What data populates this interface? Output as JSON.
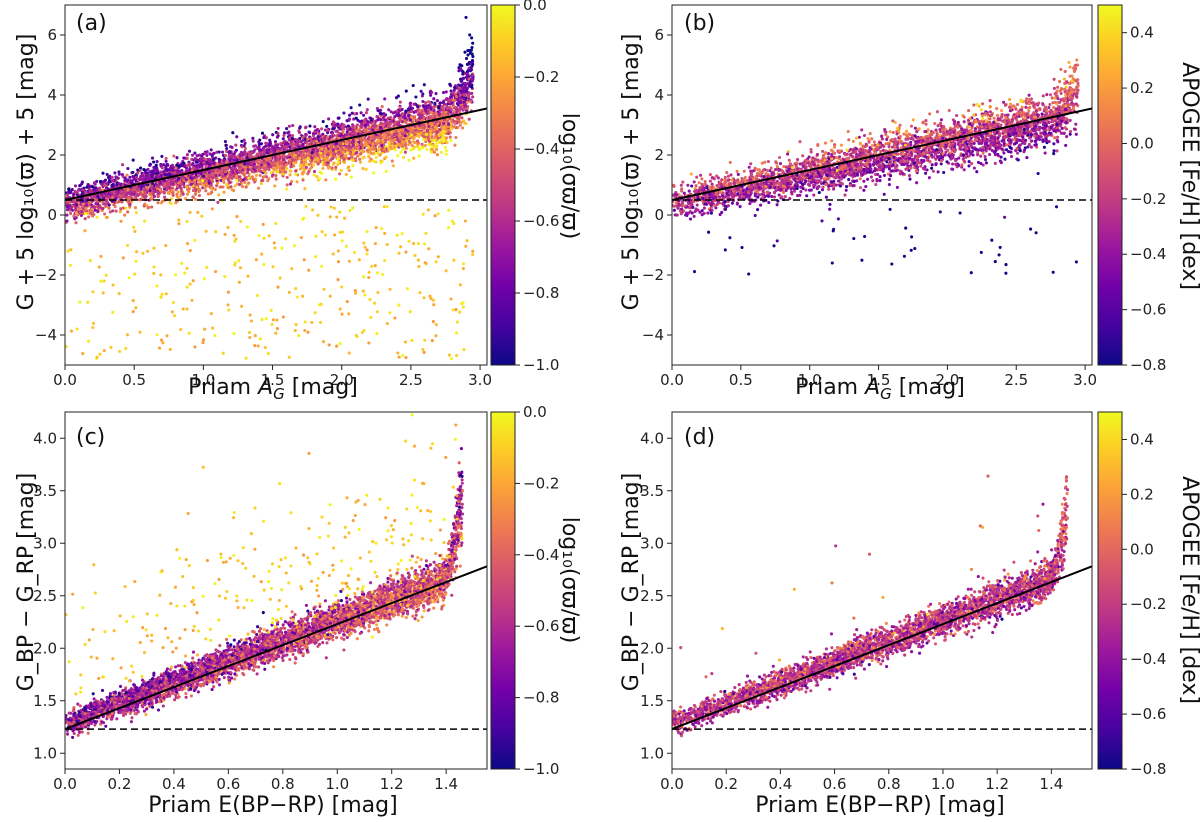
{
  "colormap": [
    "#0d0887",
    "#46039f",
    "#7201a8",
    "#9c179e",
    "#bd3786",
    "#d8576b",
    "#ed7953",
    "#fb9f3a",
    "#fdca26",
    "#f0f921"
  ],
  "chart_data": [
    {
      "id": "a",
      "type": "scatter",
      "panel_label": "(a)",
      "xlabel_main": "Priam ",
      "xlabel_var": "A",
      "xlabel_sub": "G",
      "xlabel_unit": " [mag]",
      "ylabel": "G + 5 log₁₀(ϖ) + 5 [mag]",
      "xlim": [
        0.0,
        3.05
      ],
      "ylim": [
        -5.0,
        7.0
      ],
      "xticks": [
        "0.0",
        "0.5",
        "1.0",
        "1.5",
        "2.0",
        "2.5",
        "3.0"
      ],
      "xtick_values": [
        0.0,
        0.5,
        1.0,
        1.5,
        2.0,
        2.5,
        3.0
      ],
      "yticks": [
        "−4",
        "−2",
        "0",
        "2",
        "4",
        "6"
      ],
      "ytick_values": [
        -4,
        -2,
        0,
        2,
        4,
        6
      ],
      "fit_line": {
        "x": [
          0.0,
          3.05
        ],
        "y": [
          0.5,
          3.55
        ]
      },
      "reference_line": {
        "y": 0.5
      },
      "colorbar": {
        "label": "log₁₀(σϖ/ϖ)",
        "vmin": -1.0,
        "vmax": 0.0,
        "ticks": [
          "0.0",
          "−0.2",
          "−0.4",
          "−0.6",
          "−0.8",
          "−1.0"
        ],
        "tick_values": [
          0.0,
          -0.2,
          -0.4,
          -0.6,
          -0.8,
          -1.0
        ]
      },
      "scatter": {
        "n": 5200,
        "x_max": 2.95,
        "slope": 1.0,
        "intercept": 0.5,
        "y_spread": 0.45,
        "y_offset": 0.3,
        "uptick_start": 2.7,
        "uptick_amp": 2.5,
        "outlier_fraction": 0.06,
        "outlier_y_min": -4.8,
        "outlier_y_max": 0.3,
        "color_mode": "parallax",
        "seed": 11
      }
    },
    {
      "id": "b",
      "type": "scatter",
      "panel_label": "(b)",
      "xlabel_main": "Priam ",
      "xlabel_var": "A",
      "xlabel_sub": "G",
      "xlabel_unit": " [mag]",
      "ylabel": "G + 5 log₁₀(ϖ) + 5 [mag]",
      "xlim": [
        0.0,
        3.05
      ],
      "ylim": [
        -5.0,
        7.0
      ],
      "xticks": [
        "0.0",
        "0.5",
        "1.0",
        "1.5",
        "2.0",
        "2.5",
        "3.0"
      ],
      "xtick_values": [
        0.0,
        0.5,
        1.0,
        1.5,
        2.0,
        2.5,
        3.0
      ],
      "yticks": [
        "−4",
        "−2",
        "0",
        "2",
        "4",
        "6"
      ],
      "ytick_values": [
        -4,
        -2,
        0,
        2,
        4,
        6
      ],
      "fit_line": {
        "x": [
          0.0,
          3.05
        ],
        "y": [
          0.5,
          3.55
        ]
      },
      "reference_line": {
        "y": 0.5
      },
      "colorbar": {
        "label": "APOGEE [Fe/H] [dex]",
        "vmin": -0.8,
        "vmax": 0.5,
        "ticks": [
          "0.4",
          "0.2",
          "0.0",
          "−0.2",
          "−0.4",
          "−0.6",
          "−0.8"
        ],
        "tick_values": [
          0.4,
          0.2,
          0.0,
          -0.2,
          -0.4,
          -0.6,
          -0.8
        ]
      },
      "scatter": {
        "n": 3600,
        "x_max": 2.95,
        "slope": 1.0,
        "intercept": 0.5,
        "y_spread": 0.45,
        "y_offset": 0.3,
        "uptick_start": 2.7,
        "uptick_amp": 1.6,
        "outlier_fraction": 0.01,
        "outlier_y_min": -2.0,
        "outlier_y_max": 0.3,
        "color_mode": "metallicity",
        "seed": 23
      }
    },
    {
      "id": "c",
      "type": "scatter",
      "panel_label": "(c)",
      "xlabel_main": "Priam E(BP−RP) [mag]",
      "xlabel_var": "",
      "xlabel_sub": "",
      "xlabel_unit": "",
      "ylabel": "G_BP − G_RP [mag]",
      "xlim": [
        0.0,
        1.55
      ],
      "ylim": [
        0.85,
        4.25
      ],
      "xticks": [
        "0.0",
        "0.2",
        "0.4",
        "0.6",
        "0.8",
        "1.0",
        "1.2",
        "1.4"
      ],
      "xtick_values": [
        0.0,
        0.2,
        0.4,
        0.6,
        0.8,
        1.0,
        1.2,
        1.4
      ],
      "yticks": [
        "1.0",
        "1.5",
        "2.0",
        "2.5",
        "3.0",
        "3.5",
        "4.0"
      ],
      "ytick_values": [
        1.0,
        1.5,
        2.0,
        2.5,
        3.0,
        3.5,
        4.0
      ],
      "fit_line": {
        "x": [
          0.0,
          1.55
        ],
        "y": [
          1.23,
          2.78
        ]
      },
      "reference_line": {
        "y": 1.23
      },
      "colorbar": {
        "label": "log₁₀(σϖ/ϖ)",
        "vmin": -1.0,
        "vmax": 0.0,
        "ticks": [
          "0.0",
          "−0.2",
          "−0.4",
          "−0.6",
          "−0.8",
          "−1.0"
        ],
        "tick_values": [
          0.0,
          -0.2,
          -0.4,
          -0.6,
          -0.8,
          -1.0
        ]
      },
      "scatter": {
        "n": 5200,
        "x_max": 1.46,
        "slope": 0.98,
        "intercept": 1.28,
        "y_spread": 0.1,
        "y_offset": 0.0,
        "uptick_start": 1.38,
        "uptick_amp": 1.2,
        "outlier_fraction": 0.05,
        "outlier_y_min": 1.2,
        "outlier_y_max": 3.6,
        "color_mode": "parallax",
        "seed": 37
      }
    },
    {
      "id": "d",
      "type": "scatter",
      "panel_label": "(d)",
      "xlabel_main": "Priam E(BP−RP) [mag]",
      "xlabel_var": "",
      "xlabel_sub": "",
      "xlabel_unit": "",
      "ylabel": "G_BP − G_RP [mag]",
      "xlim": [
        0.0,
        1.55
      ],
      "ylim": [
        0.85,
        4.25
      ],
      "xticks": [
        "0.0",
        "0.2",
        "0.4",
        "0.6",
        "0.8",
        "1.0",
        "1.2",
        "1.4"
      ],
      "xtick_values": [
        0.0,
        0.2,
        0.4,
        0.6,
        0.8,
        1.0,
        1.2,
        1.4
      ],
      "yticks": [
        "1.0",
        "1.5",
        "2.0",
        "2.5",
        "3.0",
        "3.5",
        "4.0"
      ],
      "ytick_values": [
        1.0,
        1.5,
        2.0,
        2.5,
        3.0,
        3.5,
        4.0
      ],
      "fit_line": {
        "x": [
          0.0,
          1.55
        ],
        "y": [
          1.23,
          2.78
        ]
      },
      "reference_line": {
        "y": 1.23
      },
      "colorbar": {
        "label": "APOGEE [Fe/H] [dex]",
        "vmin": -0.8,
        "vmax": 0.5,
        "ticks": [
          "0.4",
          "0.2",
          "0.0",
          "−0.2",
          "−0.4",
          "−0.6",
          "−0.8"
        ],
        "tick_values": [
          0.4,
          0.2,
          0.0,
          -0.2,
          -0.4,
          -0.6,
          -0.8
        ]
      },
      "scatter": {
        "n": 3600,
        "x_max": 1.46,
        "slope": 0.98,
        "intercept": 1.28,
        "y_spread": 0.09,
        "y_offset": 0.0,
        "uptick_start": 1.38,
        "uptick_amp": 1.0,
        "outlier_fraction": 0.005,
        "outlier_y_min": 1.2,
        "outlier_y_max": 3.3,
        "color_mode": "metallicity",
        "seed": 51
      }
    }
  ]
}
